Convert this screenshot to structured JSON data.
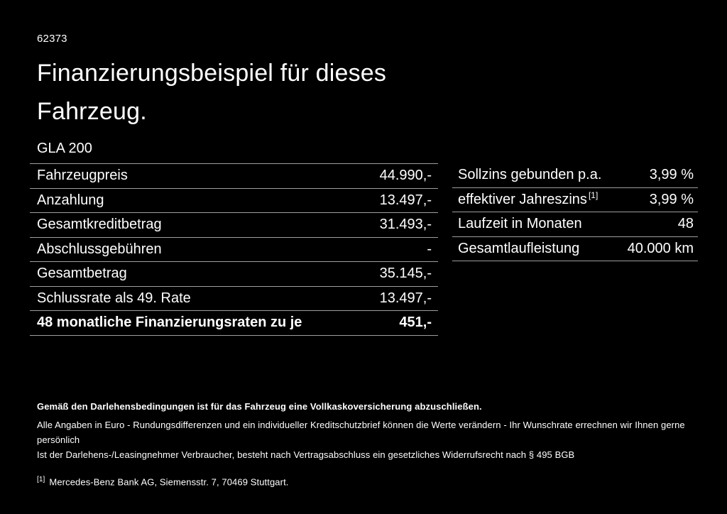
{
  "page": {
    "background": "#000000",
    "text_color": "#ffffff",
    "separator_color": "#9e9e9e"
  },
  "header": {
    "document_number": "62373",
    "title": "Finanzierungsbeispiel für dieses Fahrzeug.",
    "model": "GLA 200"
  },
  "left_table": {
    "rows": [
      {
        "label": "Fahrzeugpreis",
        "value": "44.990,-"
      },
      {
        "label": "Anzahlung",
        "value": "13.497,-"
      },
      {
        "label": "Gesamtkreditbetrag",
        "value": "31.493,-"
      },
      {
        "label": "Abschlussgebühren",
        "value": "-"
      },
      {
        "label": "Gesamtbetrag",
        "value": "35.145,-"
      },
      {
        "label": "Schlussrate als 49. Rate",
        "value": "13.497,-"
      },
      {
        "label": "48 monatliche Finanzierungsraten zu je",
        "value": "451,-",
        "bold": true
      }
    ]
  },
  "right_table": {
    "rows": [
      {
        "label": "Sollzins gebunden p.a.",
        "value": "3,99 %"
      },
      {
        "label": "effektiver Jahreszins",
        "sup": "[1]",
        "value": "3,99 %"
      },
      {
        "label": "Laufzeit in Monaten",
        "value": "48"
      },
      {
        "label": "Gesamtlaufleistung",
        "value": "40.000 km"
      }
    ]
  },
  "fine_print": {
    "insurance_note": "Gemäß den Darlehensbedingungen ist für das Fahrzeug eine Vollkaskoversicherung abzuschließen.",
    "disclaimer_line1": "Alle Angaben in Euro - Rundungsdifferenzen und ein individueller Kreditschutzbrief können die Werte verändern - Ihr Wunschrate errechnen wir Ihnen gerne persönlich",
    "disclaimer_line2": "Ist der Darlehens-/Leasingnehmer Verbraucher, besteht nach Vertragsabschluss ein gesetzliches Widerrufsrecht nach § 495 BGB",
    "footnote_marker": "[1]",
    "footnote_text": "Mercedes-Benz Bank AG, Siemensstr. 7, 70469 Stuttgart."
  }
}
